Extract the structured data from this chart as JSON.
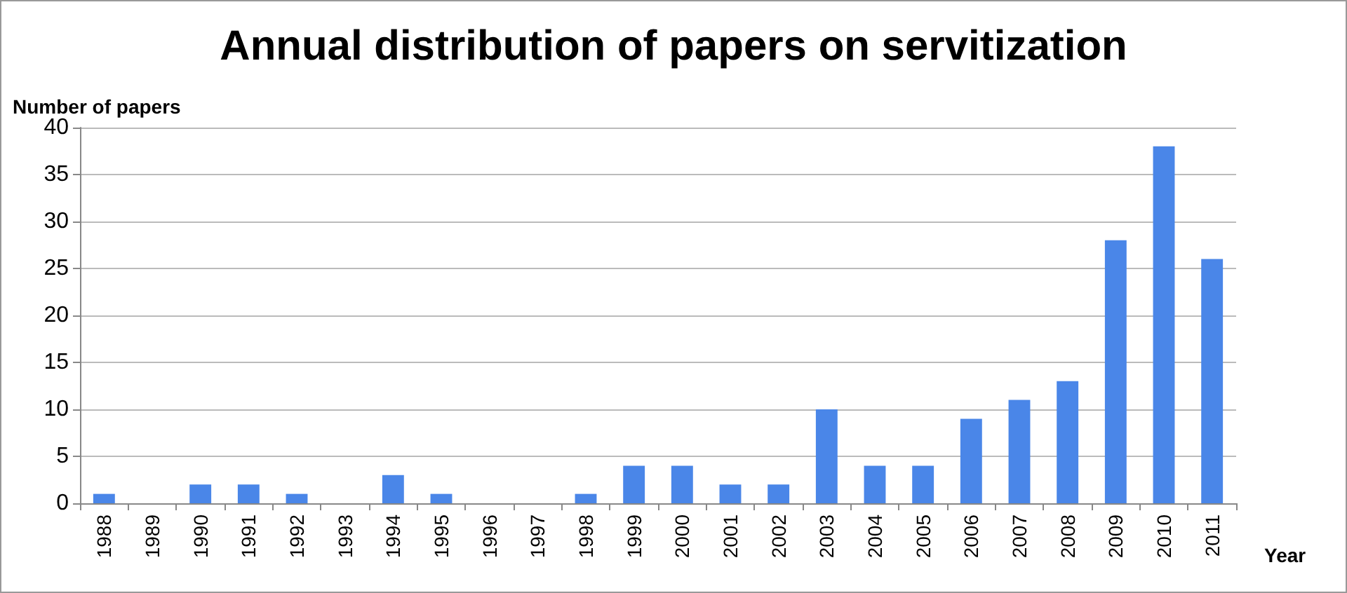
{
  "chart_data": {
    "type": "bar",
    "title": "Annual distribution of papers on servitization",
    "ylabel": "Number of papers",
    "xlabel": "Year",
    "categories": [
      "1988",
      "1989",
      "1990",
      "1991",
      "1992",
      "1993",
      "1994",
      "1995",
      "1996",
      "1997",
      "1998",
      "1999",
      "2000",
      "2001",
      "2002",
      "2003",
      "2004",
      "2005",
      "2006",
      "2007",
      "2008",
      "2009",
      "2010",
      "2011"
    ],
    "values": [
      1,
      0,
      2,
      2,
      1,
      0,
      3,
      1,
      0,
      0,
      1,
      4,
      4,
      2,
      2,
      10,
      4,
      4,
      9,
      11,
      13,
      28,
      38,
      26
    ],
    "color": "#4a86e8",
    "ylim": [
      0,
      40
    ],
    "yticks": [
      0,
      5,
      10,
      15,
      20,
      25,
      30,
      35,
      40
    ],
    "grid": "y"
  }
}
